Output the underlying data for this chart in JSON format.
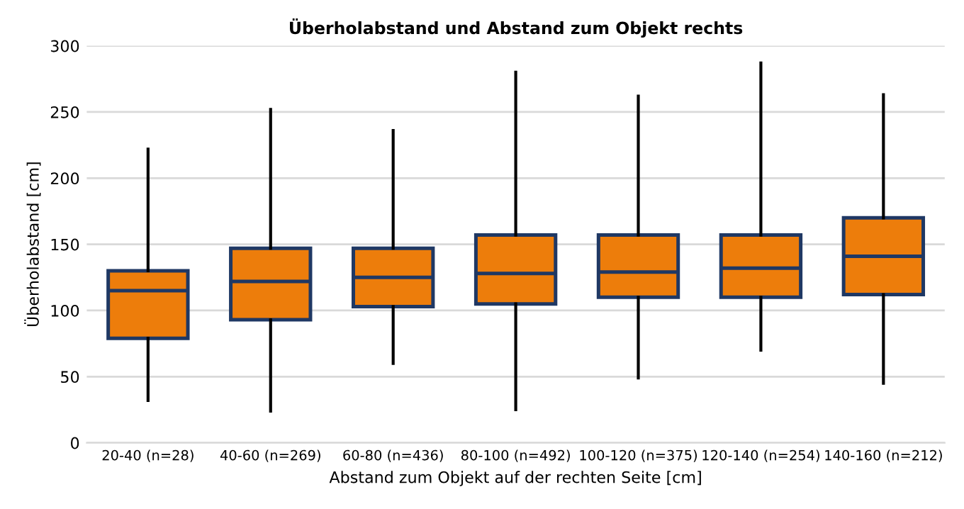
{
  "chart_data": {
    "type": "box",
    "title": "Überholabstand und Abstand zum Objekt rechts",
    "xlabel": "Abstand zum Objekt auf der rechten Seite [cm]",
    "ylabel": "Überholabstand [cm]",
    "categories": [
      "20-40 (n=28)",
      "40-60 (n=269)",
      "60-80 (n=436)",
      "80-100 (n=492)",
      "100-120 (n=375)",
      "120-140 (n=254)",
      "140-160 (n=212)"
    ],
    "series": [
      {
        "color": "#ed7d0b",
        "boxes": [
          {
            "low": 32,
            "q1": 79,
            "median": 115,
            "q3": 130,
            "high": 222
          },
          {
            "low": 24,
            "q1": 93,
            "median": 122,
            "q3": 147,
            "high": 252
          },
          {
            "low": 60,
            "q1": 103,
            "median": 125,
            "q3": 147,
            "high": 236
          },
          {
            "low": 25,
            "q1": 105,
            "median": 128,
            "q3": 157,
            "high": 280
          },
          {
            "low": 49,
            "q1": 110,
            "median": 129,
            "q3": 157,
            "high": 262
          },
          {
            "low": 70,
            "q1": 110,
            "median": 132,
            "q3": 157,
            "high": 287
          },
          {
            "low": 45,
            "q1": 112,
            "median": 141,
            "q3": 170,
            "high": 263
          }
        ]
      }
    ],
    "ylim": [
      0,
      300
    ],
    "yticks": [
      0,
      50,
      100,
      150,
      200,
      250,
      300
    ],
    "grid": "y"
  }
}
